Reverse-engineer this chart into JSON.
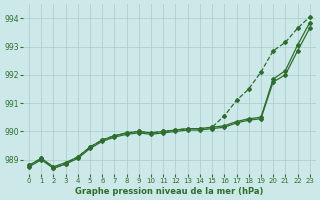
{
  "title": "Graphe pression niveau de la mer (hPa)",
  "background_color": "#cce8e8",
  "grid_color": "#aacccc",
  "line_color": "#2d6e2d",
  "xlim": [
    -0.5,
    23.5
  ],
  "ylim": [
    988.5,
    994.5
  ],
  "yticks": [
    989,
    990,
    991,
    992,
    993,
    994
  ],
  "xticks": [
    0,
    1,
    2,
    3,
    4,
    5,
    6,
    7,
    8,
    9,
    10,
    11,
    12,
    13,
    14,
    15,
    16,
    17,
    18,
    19,
    20,
    21,
    22,
    23
  ],
  "series": [
    {
      "x": [
        0,
        1,
        2,
        3,
        4,
        5,
        6,
        7,
        8,
        9,
        10,
        11,
        12,
        13,
        14,
        15,
        16,
        17,
        18,
        19,
        20,
        21,
        22,
        23
      ],
      "y": [
        988.8,
        989.05,
        988.75,
        988.9,
        989.1,
        989.45,
        989.7,
        989.85,
        989.95,
        990.0,
        989.95,
        990.0,
        990.05,
        990.1,
        990.1,
        990.15,
        990.2,
        990.35,
        990.45,
        990.5,
        991.85,
        992.15,
        993.05,
        993.85
      ],
      "marker": "D",
      "markersize": 2.0,
      "linewidth": 0.9,
      "linestyle": "-"
    },
    {
      "x": [
        0,
        1,
        2,
        3,
        4,
        5,
        6,
        7,
        8,
        9,
        10,
        11,
        12,
        13,
        14,
        15,
        16,
        17,
        18,
        19,
        20,
        21,
        22,
        23
      ],
      "y": [
        988.75,
        989.0,
        988.7,
        988.85,
        989.05,
        989.4,
        989.65,
        989.8,
        989.9,
        989.95,
        989.9,
        989.95,
        990.0,
        990.05,
        990.05,
        990.1,
        990.15,
        990.3,
        990.4,
        990.45,
        991.75,
        992.0,
        992.85,
        993.65
      ],
      "marker": "D",
      "markersize": 2.0,
      "linewidth": 0.9,
      "linestyle": "-"
    },
    {
      "x": [
        0,
        1,
        2,
        3,
        4,
        5,
        6,
        7,
        8,
        9,
        10,
        11,
        12,
        13,
        14,
        15,
        16,
        17,
        18,
        19,
        20,
        21,
        22,
        23
      ],
      "y": [
        988.8,
        989.05,
        988.7,
        988.85,
        989.1,
        989.45,
        989.7,
        989.85,
        989.95,
        990.0,
        989.95,
        990.0,
        990.05,
        990.1,
        990.1,
        990.15,
        990.55,
        991.1,
        991.5,
        992.1,
        992.85,
        993.15,
        993.65,
        994.05
      ],
      "marker": "D",
      "markersize": 2.0,
      "linewidth": 0.9,
      "linestyle": "--"
    }
  ]
}
